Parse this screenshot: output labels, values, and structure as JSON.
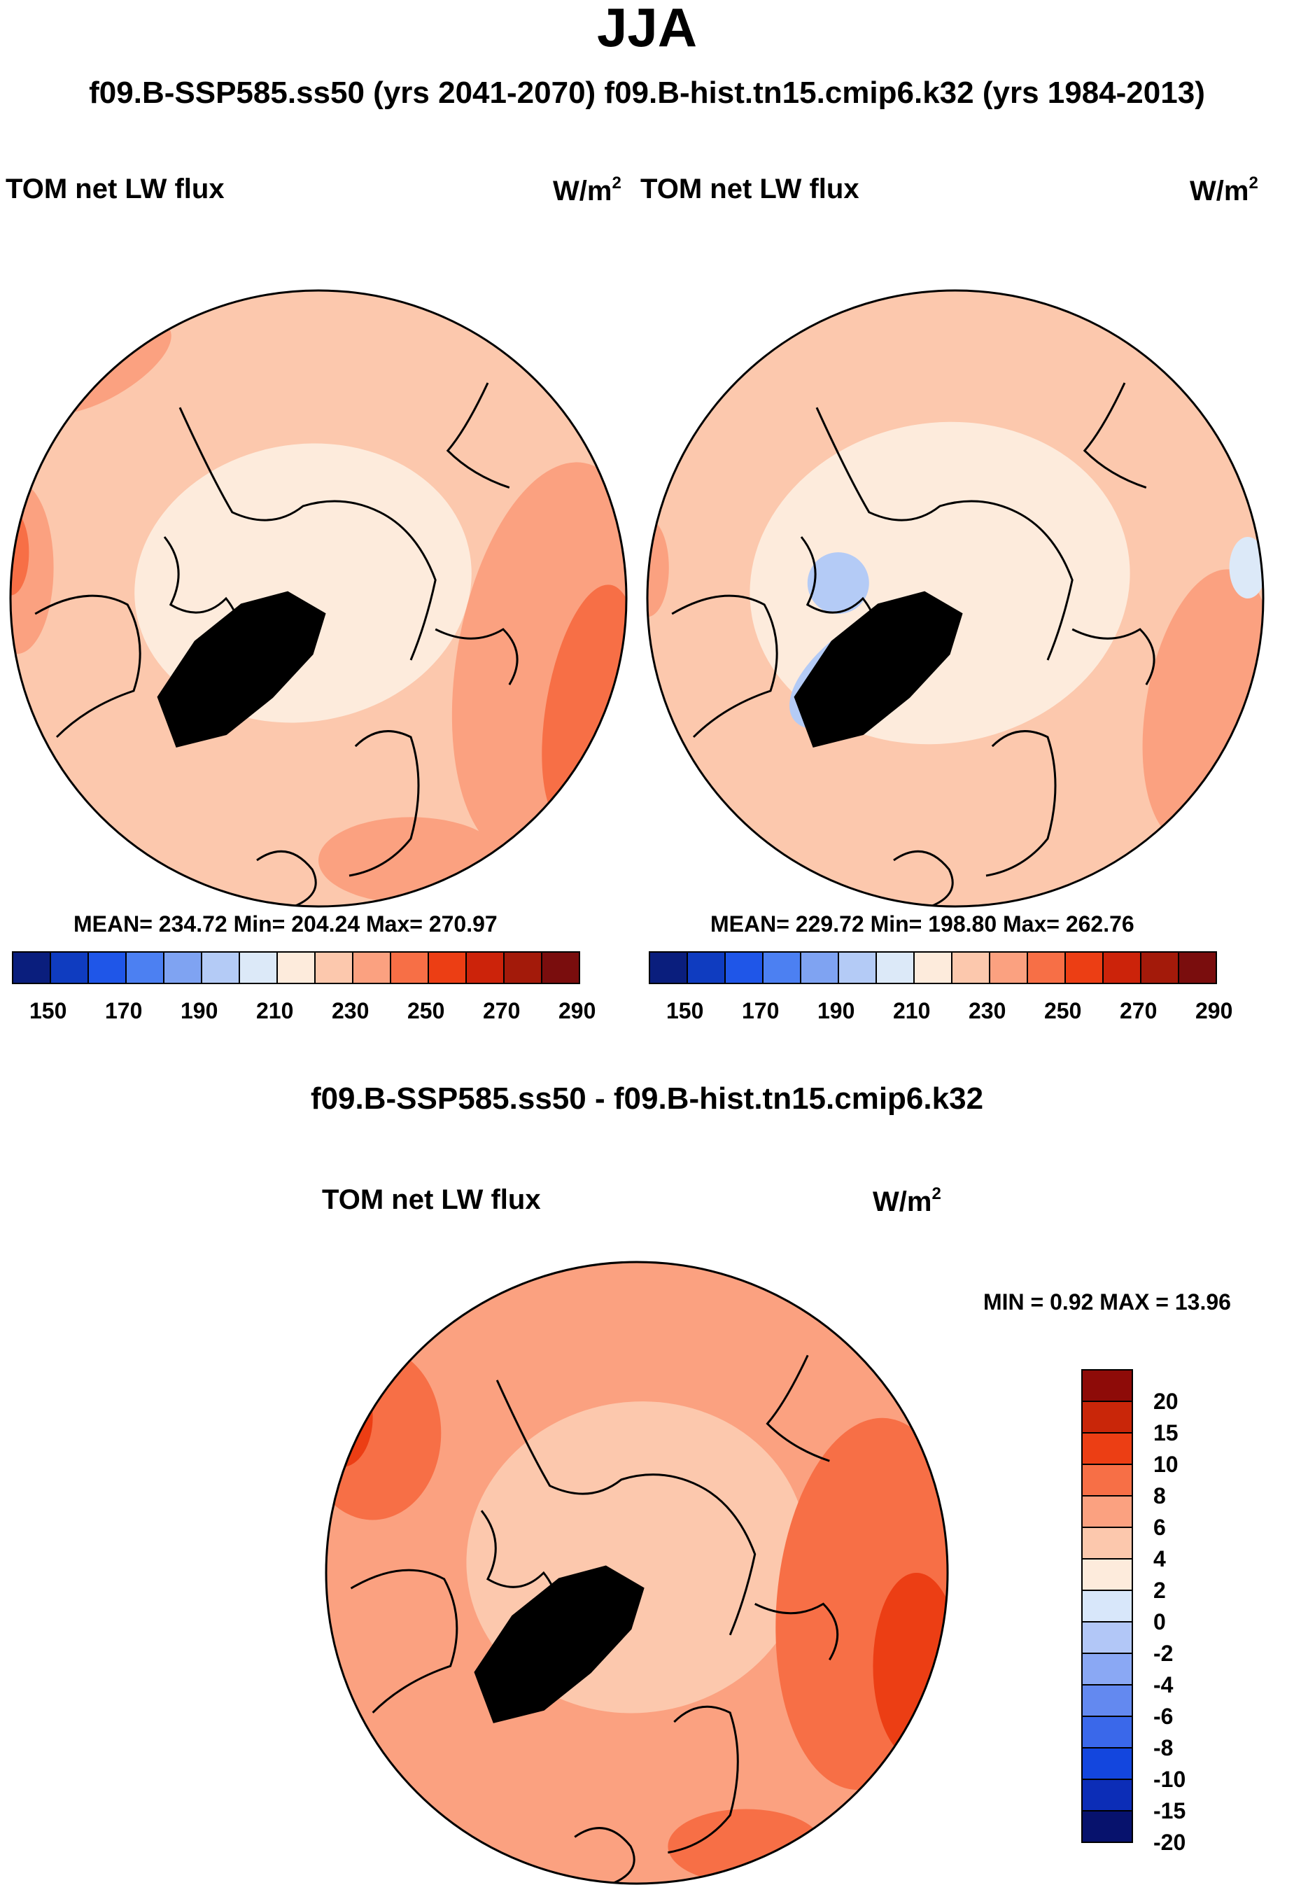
{
  "figure": {
    "title": "JJA",
    "subtitle": "f09.B-SSP585.ss50 (yrs 2041-2070)  f09.B-hist.tn15.cmip6.k32 (yrs 1984-2013)",
    "diff_title": "f09.B-SSP585.ss50 - f09.B-hist.tn15.cmip6.k32"
  },
  "panels": {
    "left": {
      "label": "TOM net LW flux",
      "units_base": "W/m",
      "units_exp": "2",
      "stats": "MEAN= 234.72  Min= 204.24  Max= 270.97"
    },
    "right": {
      "label": "TOM net LW flux",
      "units_base": "W/m",
      "units_exp": "2",
      "stats": "MEAN= 229.72  Min= 198.80  Max= 262.76"
    },
    "diff": {
      "label": "TOM net LW flux",
      "units_base": "W/m",
      "units_exp": "2",
      "stats": "MIN =   0.92 MAX =  13.96"
    }
  },
  "colors": {
    "abs_scale": [
      "#0a1e7d",
      "#0f3cc0",
      "#1f56e8",
      "#4c80f2",
      "#7fa3f2",
      "#b4cbf6",
      "#dce9f8",
      "#fdebdc",
      "#fcc8ad",
      "#fba180",
      "#f76f46",
      "#ec3e14",
      "#cc230a",
      "#a31a0a",
      "#7a0d0d"
    ],
    "diff_scale": [
      "#07126d",
      "#0c2db7",
      "#1346de",
      "#3a68ea",
      "#6389f0",
      "#8aa8f4",
      "#b2c7f7",
      "#d8e7fa",
      "#fdebdc",
      "#fcc8ad",
      "#fba180",
      "#f76f46",
      "#ec3e14",
      "#c92609",
      "#8e0b08"
    ],
    "coast": "#000000"
  },
  "chart_data": [
    {
      "type": "heatmap",
      "projection": "north-polar-stereographic",
      "title": "TOM net LW flux",
      "units": "W/m^2",
      "colorbar_ticks": [
        "150",
        "170",
        "190",
        "210",
        "230",
        "250",
        "270",
        "290"
      ],
      "colorbar_levels": [
        140,
        150,
        160,
        170,
        180,
        190,
        200,
        210,
        220,
        230,
        240,
        250,
        260,
        270,
        280,
        290
      ],
      "stats": {
        "mean": 234.72,
        "min": 204.24,
        "max": 270.97
      }
    },
    {
      "type": "heatmap",
      "projection": "north-polar-stereographic",
      "title": "TOM net LW flux",
      "units": "W/m^2",
      "colorbar_ticks": [
        "150",
        "170",
        "190",
        "210",
        "230",
        "250",
        "270",
        "290"
      ],
      "colorbar_levels": [
        140,
        150,
        160,
        170,
        180,
        190,
        200,
        210,
        220,
        230,
        240,
        250,
        260,
        270,
        280,
        290
      ],
      "stats": {
        "mean": 229.72,
        "min": 198.8,
        "max": 262.76
      }
    },
    {
      "type": "heatmap",
      "projection": "north-polar-stereographic",
      "title": "f09.B-SSP585.ss50 - f09.B-hist.tn15.cmip6.k32",
      "units": "W/m^2",
      "colorbar_ticks": [
        "20",
        "15",
        "10",
        "8",
        "6",
        "4",
        "2",
        "0",
        "-2",
        "-4",
        "-6",
        "-8",
        "-10",
        "-15",
        "-20"
      ],
      "stats": {
        "min": 0.92,
        "max": 13.96
      }
    }
  ]
}
